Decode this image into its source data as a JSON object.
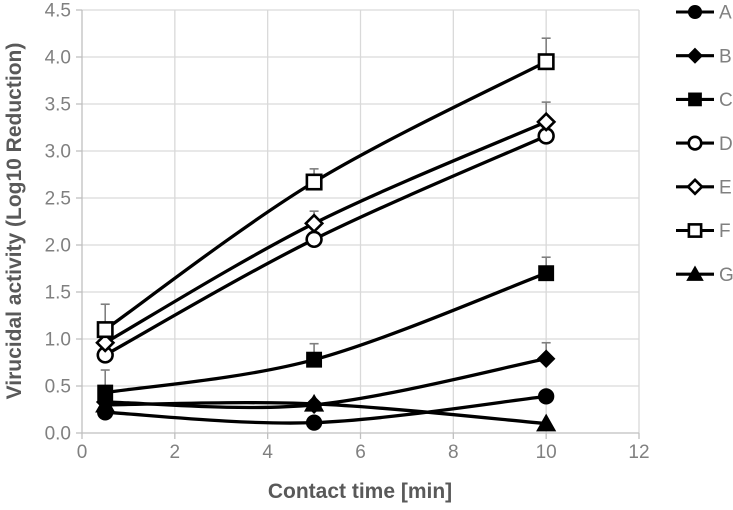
{
  "colors": {
    "series": "#000000",
    "gridline": "#d9d9d9",
    "axis_line": "#bfbfbf",
    "tick_label": "#808080",
    "axis_title": "#595959",
    "error_bar": "#7f7f7f",
    "background": "#ffffff",
    "open_marker_fill": "#ffffff"
  },
  "chart_data": {
    "type": "line",
    "title": "",
    "xlabel": "Contact time [min]",
    "ylabel": "Virucidal activity (Log10 Reduction)",
    "xlim": [
      0,
      12
    ],
    "ylim": [
      0,
      4.5
    ],
    "xticks": [
      0,
      2,
      4,
      6,
      8,
      10,
      12
    ],
    "ytick_labels": [
      "0.0",
      "0.5",
      "1.0",
      "1.5",
      "2.0",
      "2.5",
      "3.0",
      "3.5",
      "4.0",
      "4.5"
    ],
    "grid": true,
    "legend_position": "right",
    "line_style": "smooth",
    "x": [
      0.5,
      5,
      10
    ],
    "series": [
      {
        "name": "A",
        "marker": "circle",
        "variant": "filled",
        "values": [
          0.22,
          0.11,
          0.39
        ],
        "err_up": [
          0,
          0,
          0
        ]
      },
      {
        "name": "B",
        "marker": "diamond",
        "variant": "filled",
        "values": [
          0.33,
          0.3,
          0.79
        ],
        "err_up": [
          0,
          0,
          0.17
        ]
      },
      {
        "name": "C",
        "marker": "square",
        "variant": "filled",
        "values": [
          0.43,
          0.78,
          1.7
        ],
        "err_up": [
          0.24,
          0.17,
          0.17
        ]
      },
      {
        "name": "D",
        "marker": "circle",
        "variant": "open",
        "values": [
          0.83,
          2.06,
          3.16
        ],
        "err_up": [
          0,
          0,
          0
        ]
      },
      {
        "name": "E",
        "marker": "diamond",
        "variant": "open",
        "values": [
          0.96,
          2.23,
          3.31
        ],
        "err_up": [
          0,
          0.13,
          0.21
        ]
      },
      {
        "name": "F",
        "marker": "square",
        "variant": "open",
        "values": [
          1.1,
          2.67,
          3.95
        ],
        "err_up": [
          0.27,
          0.14,
          0.25
        ]
      },
      {
        "name": "G",
        "marker": "triangle",
        "variant": "filled",
        "values": [
          0.3,
          0.31,
          0.1
        ],
        "err_up": [
          0,
          0,
          0
        ]
      }
    ]
  }
}
